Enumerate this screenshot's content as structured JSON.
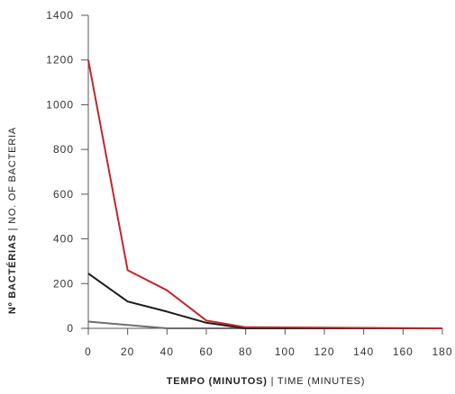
{
  "chart_data": {
    "type": "line",
    "xlabel_bold": "TEMPO (MINUTOS)",
    "xlabel_rest": " | TIME (MINUTES)",
    "ylabel_bold": "Nº BACTÉRIAS",
    "ylabel_rest": " | NO. OF BACTERIA",
    "xlim": [
      0,
      180
    ],
    "ylim": [
      0,
      1400
    ],
    "x_ticks": [
      0,
      20,
      40,
      60,
      80,
      100,
      120,
      140,
      160,
      180
    ],
    "y_ticks": [
      0,
      200,
      400,
      600,
      800,
      1000,
      1200,
      1400
    ],
    "grid": false,
    "series": [
      {
        "color": "#c0272d",
        "x": [
          0,
          20,
          40,
          60,
          80,
          180
        ],
        "y": [
          1200,
          260,
          170,
          35,
          5,
          0
        ]
      },
      {
        "color": "#1a1a1a",
        "x": [
          0,
          20,
          40,
          60,
          80,
          180
        ],
        "y": [
          245,
          120,
          75,
          25,
          0,
          0
        ]
      },
      {
        "color": "#6d6e71",
        "x": [
          0,
          40,
          180
        ],
        "y": [
          30,
          0,
          0
        ]
      }
    ]
  }
}
